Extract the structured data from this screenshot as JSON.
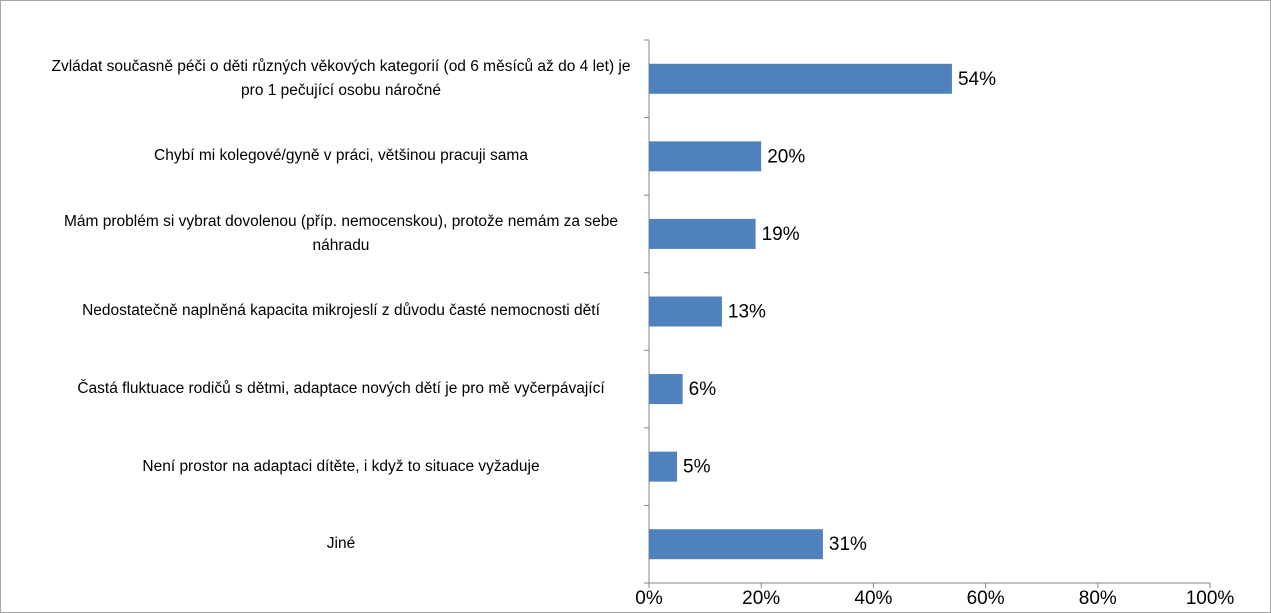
{
  "chart_data": {
    "type": "bar",
    "orientation": "horizontal",
    "categories": [
      "Zvládat současně péči o děti různých věkových kategorií (od 6 měsíců až do 4 let) je pro 1 pečující osobu náročné",
      "Chybí mi kolegové/gyně v práci, většinou pracuji sama",
      "Mám problém si vybrat dovolenou (příp. nemocenskou), protože nemám za sebe náhradu",
      "Nedostatečně naplněná kapacita mikrojeslí z důvodu časté nemocnosti dětí",
      "Častá fluktuace rodičů s dětmi, adaptace nových dětí je pro mě vyčerpávající",
      "Není prostor na adaptaci dítěte, i když to situace vyžaduje",
      "Jiné"
    ],
    "values": [
      54,
      20,
      19,
      13,
      6,
      5,
      31
    ],
    "value_labels": [
      "54%",
      "20%",
      "19%",
      "13%",
      "6%",
      "5%",
      "31%"
    ],
    "color": "#4f81bd",
    "xlim": [
      0,
      100
    ],
    "xticks": [
      {
        "value": 0,
        "label": "0%"
      },
      {
        "value": 20,
        "label": "20%"
      },
      {
        "value": 40,
        "label": "40%"
      },
      {
        "value": 60,
        "label": "60%"
      },
      {
        "value": 80,
        "label": "80%"
      },
      {
        "value": 100,
        "label": "100%"
      }
    ],
    "grid": false
  }
}
